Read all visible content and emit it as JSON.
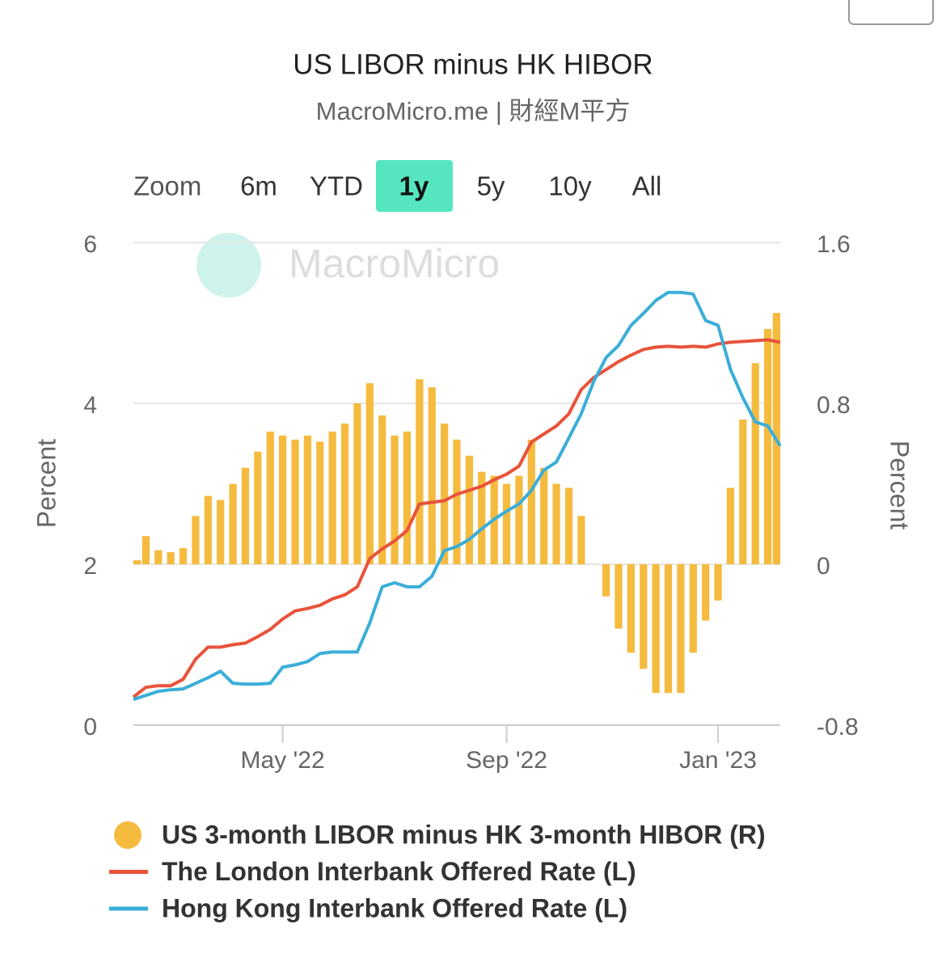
{
  "chart_data": {
    "type": "combo",
    "title": "US LIBOR minus HK HIBOR",
    "subtitle": "MacroMicro.me | 財經M平方",
    "watermark": "MacroMicro",
    "zoom": {
      "label": "Zoom",
      "buttons": [
        "6m",
        "YTD",
        "1y",
        "5y",
        "10y",
        "All"
      ],
      "selected": 2
    },
    "y_label": "Percent",
    "y2_label": "Percent",
    "ylim": [
      0,
      6
    ],
    "yticks": [
      0,
      2,
      4,
      6
    ],
    "y2lim": [
      -0.8,
      1.6
    ],
    "y2ticks": [
      -0.8,
      0,
      0.8,
      1.6
    ],
    "grid": true,
    "legend": "bottom",
    "categories": [
      null,
      null,
      null,
      null,
      null,
      null,
      null,
      null,
      null,
      null,
      null,
      null,
      "May '22",
      null,
      null,
      null,
      null,
      null,
      null,
      null,
      null,
      null,
      null,
      null,
      null,
      null,
      null,
      null,
      null,
      null,
      "Sep '22",
      null,
      null,
      null,
      null,
      null,
      null,
      null,
      null,
      null,
      null,
      null,
      null,
      null,
      null,
      null,
      null,
      "Jan '23",
      null,
      null,
      null,
      null,
      null
    ],
    "series": [
      {
        "name": "US 3-month LIBOR minus HK 3-month HIBOR (R)",
        "type": "bar",
        "axis": "y2",
        "color": "#f5bb3f",
        "values": [
          0.02,
          0.14,
          0.07,
          0.06,
          0.08,
          0.24,
          0.34,
          0.32,
          0.4,
          0.48,
          0.56,
          0.66,
          0.64,
          0.62,
          0.64,
          0.61,
          0.66,
          0.7,
          0.8,
          0.9,
          0.74,
          0.64,
          0.66,
          0.92,
          0.88,
          0.7,
          0.62,
          0.54,
          0.46,
          0.44,
          0.4,
          0.44,
          0.62,
          0.48,
          0.4,
          0.38,
          0.24,
          0.0,
          -0.16,
          -0.32,
          -0.44,
          -0.52,
          -0.64,
          -0.64,
          -0.64,
          -0.44,
          -0.28,
          -0.18,
          0.38,
          0.72,
          1.0,
          1.17,
          1.25
        ]
      },
      {
        "name": "The London Interbank Offered Rate (L)",
        "type": "line",
        "color": "#e8533a",
        "values": [
          0.35,
          0.47,
          0.49,
          0.49,
          0.57,
          0.82,
          0.97,
          0.97,
          1.0,
          1.02,
          1.1,
          1.19,
          1.32,
          1.42,
          1.45,
          1.49,
          1.57,
          1.62,
          1.72,
          2.07,
          2.19,
          2.29,
          2.42,
          2.75,
          2.77,
          2.79,
          2.87,
          2.92,
          2.97,
          3.05,
          3.12,
          3.22,
          3.52,
          3.62,
          3.72,
          3.87,
          4.17,
          4.32,
          4.42,
          4.52,
          4.6,
          4.67,
          4.7,
          4.71,
          4.7,
          4.71,
          4.7,
          4.74,
          4.76,
          4.77,
          4.78,
          4.79,
          4.76
        ]
      },
      {
        "name": "Hong Kong Interbank Offered Rate (L)",
        "type": "line",
        "color": "#3aaed8",
        "values": [
          0.32,
          0.37,
          0.42,
          0.44,
          0.45,
          0.52,
          0.59,
          0.67,
          0.52,
          0.51,
          0.51,
          0.52,
          0.72,
          0.75,
          0.79,
          0.89,
          0.91,
          0.91,
          0.91,
          1.27,
          1.72,
          1.77,
          1.72,
          1.72,
          1.85,
          2.17,
          2.22,
          2.31,
          2.44,
          2.56,
          2.66,
          2.75,
          2.92,
          3.17,
          3.27,
          3.57,
          3.87,
          4.27,
          4.57,
          4.72,
          4.97,
          5.12,
          5.28,
          5.38,
          5.38,
          5.36,
          5.03,
          4.97,
          4.42,
          4.07,
          3.77,
          3.72,
          3.47
        ]
      }
    ]
  }
}
